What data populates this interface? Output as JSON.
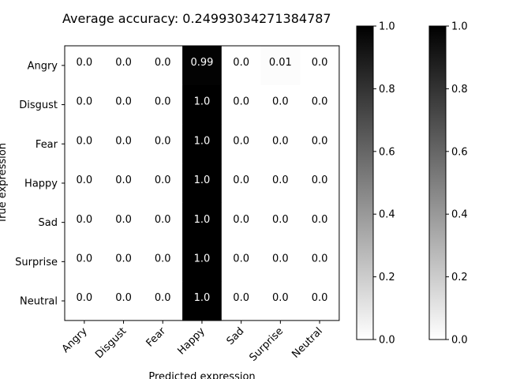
{
  "chart_data": {
    "type": "heatmap",
    "title": "Average accuracy: 0.24993034271384787",
    "xlabel": "Predicted expression",
    "ylabel": "True expression",
    "x_categories": [
      "Angry",
      "Disgust",
      "Fear",
      "Happy",
      "Sad",
      "Surprise",
      "Neutral"
    ],
    "y_categories": [
      "Angry",
      "Disgust",
      "Fear",
      "Happy",
      "Sad",
      "Surprise",
      "Neutral"
    ],
    "values": [
      [
        0.0,
        0.0,
        0.0,
        0.99,
        0.0,
        0.01,
        0.0
      ],
      [
        0.0,
        0.0,
        0.0,
        1.0,
        0.0,
        0.0,
        0.0
      ],
      [
        0.0,
        0.0,
        0.0,
        1.0,
        0.0,
        0.0,
        0.0
      ],
      [
        0.0,
        0.0,
        0.0,
        1.0,
        0.0,
        0.0,
        0.0
      ],
      [
        0.0,
        0.0,
        0.0,
        1.0,
        0.0,
        0.0,
        0.0
      ],
      [
        0.0,
        0.0,
        0.0,
        1.0,
        0.0,
        0.0,
        0.0
      ],
      [
        0.0,
        0.0,
        0.0,
        1.0,
        0.0,
        0.0,
        0.0
      ]
    ],
    "cell_labels": [
      [
        "0.0",
        "0.0",
        "0.0",
        "0.99",
        "0.0",
        "0.01",
        "0.0"
      ],
      [
        "0.0",
        "0.0",
        "0.0",
        "1.0",
        "0.0",
        "0.0",
        "0.0"
      ],
      [
        "0.0",
        "0.0",
        "0.0",
        "1.0",
        "0.0",
        "0.0",
        "0.0"
      ],
      [
        "0.0",
        "0.0",
        "0.0",
        "1.0",
        "0.0",
        "0.0",
        "0.0"
      ],
      [
        "0.0",
        "0.0",
        "0.0",
        "1.0",
        "0.0",
        "0.0",
        "0.0"
      ],
      [
        "0.0",
        "0.0",
        "0.0",
        "1.0",
        "0.0",
        "0.0",
        "0.0"
      ],
      [
        "0.0",
        "0.0",
        "0.0",
        "1.0",
        "0.0",
        "0.0",
        "0.0"
      ]
    ],
    "colormap": "gray_r",
    "colorbars": [
      {
        "range": [
          0.0,
          1.0
        ],
        "ticks": [
          "0.0",
          "0.2",
          "0.4",
          "0.6",
          "0.8",
          "1.0"
        ]
      },
      {
        "range": [
          0.0,
          1.0
        ],
        "ticks": [
          "0.0",
          "0.2",
          "0.4",
          "0.6",
          "0.8",
          "1.0"
        ]
      }
    ],
    "grid": false
  }
}
